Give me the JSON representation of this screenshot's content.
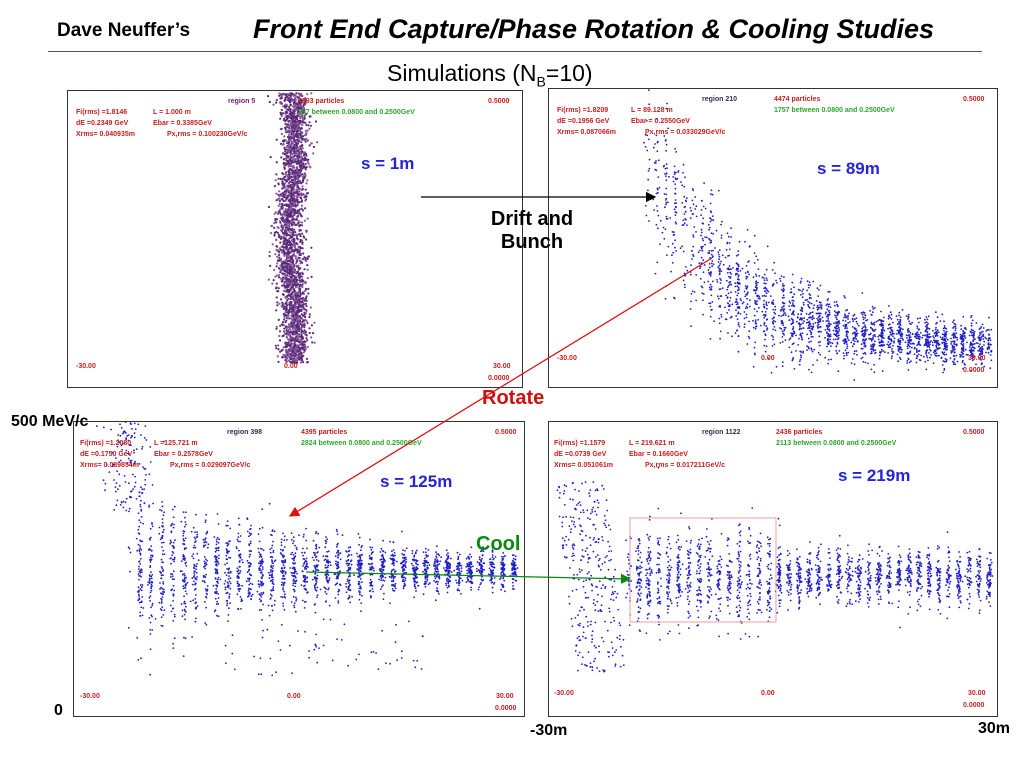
{
  "header": {
    "author": "Dave Neuffer’s",
    "title": "Front End Capture/Phase Rotation & Cooling Studies",
    "subtitle_prefix": "Simulations (N",
    "subtitle_sub": "B",
    "subtitle_suffix": "=10)"
  },
  "panels": [
    {
      "fi": "Fi(rms) =1.8146",
      "L": "L =  1.000 m",
      "region": "region   5",
      "particles": "4993 particles",
      "between": "257 between 0.0800 and 0.2500GeV",
      "top_right": "0.5000",
      "dE": "dE =0.2349 GeV",
      "ebar": "Ebar =  0.3385GeV",
      "xrms": "Xrms= 0.040935m",
      "px": "Px,rms = 0.100230GeV/c",
      "x_left": "-30.00",
      "x_mid": "0.00",
      "x_right": "30.00",
      "bottom_right": "0.0000",
      "s_label": "s = 1m"
    },
    {
      "fi": "Fi(rms) =1.8209",
      "L": "L = 89.128 m",
      "region": "region   210",
      "particles": "4474 particles",
      "between": "1757 between 0.0800 and 0.2500GeV",
      "top_right": "0.5000",
      "dE": "dE =0.1956 GeV",
      "ebar": "Ebar =  0.2550GeV",
      "xrms": "Xrms= 0.087066m",
      "px": "Px,rms = 0.033029GeV/c",
      "x_left": "-30.00",
      "x_mid": "0.00",
      "x_right": "30.00",
      "bottom_right": "0.0000",
      "s_label": "s = 89m"
    },
    {
      "fi": "Fi(rms) =1.2080",
      "L": "L =125.721 m",
      "region": "region   398",
      "particles": "4395 particles",
      "between": "2824 between 0.0800 and 0.2500GeV",
      "top_right": "0.5000",
      "dE": "dE =0.1750 GeV",
      "ebar": "Ebar =  0.2578GeV",
      "xrms": "Xrms= 0.089854m",
      "px": "Px,rms = 0.029097GeV/c",
      "x_left": "-30.00",
      "x_mid": "0.00",
      "x_right": "30.00",
      "bottom_right": "0.0000",
      "s_label": "s = 125m"
    },
    {
      "fi": "Fi(rms) =1.1579",
      "L": "L = 219.621 m",
      "region": "region   1122",
      "particles": "2436 particles",
      "between": "2113 between 0.0800 and 0.2500GeV",
      "top_right": "0.5000",
      "dE": "dE =0.0739 GeV",
      "ebar": "Ebar =  0.1660GeV",
      "xrms": "Xrms= 0.051061m",
      "px": "Px,rms = 0.017211GeV/c",
      "x_left": "-30.00",
      "x_mid": "0.00",
      "x_right": "30.00",
      "bottom_right": "0.0000",
      "s_label": "s = 219m"
    }
  ],
  "annotations": {
    "drift_line1": "Drift and",
    "drift_line2": "Bunch",
    "rotate": "Rotate",
    "cool": "Cool"
  },
  "axis_labels": {
    "y_top": "500 MeV/c",
    "y_zero": "0",
    "x_left": "-30m",
    "x_right": "30m"
  },
  "colors": {
    "dot_blue": "#1f1fc8",
    "dot_purple": "#5a2a78",
    "arrow_black": "#000000",
    "arrow_red": "#e01010",
    "arrow_green": "#0a8a0a",
    "rotate_text": "#d01010",
    "cool_text": "#0a8a0a"
  }
}
